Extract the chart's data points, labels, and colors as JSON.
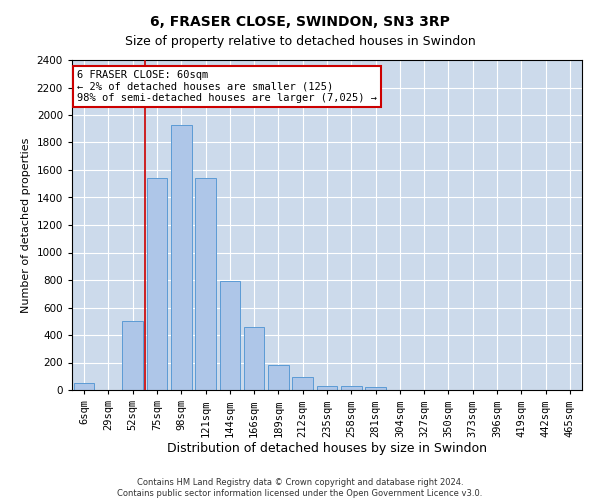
{
  "title": "6, FRASER CLOSE, SWINDON, SN3 3RP",
  "subtitle": "Size of property relative to detached houses in Swindon",
  "xlabel": "Distribution of detached houses by size in Swindon",
  "ylabel": "Number of detached properties",
  "categories": [
    "6sqm",
    "29sqm",
    "52sqm",
    "75sqm",
    "98sqm",
    "121sqm",
    "144sqm",
    "166sqm",
    "189sqm",
    "212sqm",
    "235sqm",
    "258sqm",
    "281sqm",
    "304sqm",
    "327sqm",
    "350sqm",
    "373sqm",
    "396sqm",
    "419sqm",
    "442sqm",
    "465sqm"
  ],
  "values": [
    50,
    0,
    500,
    1540,
    1930,
    1540,
    790,
    460,
    185,
    95,
    30,
    30,
    20,
    0,
    0,
    0,
    0,
    0,
    0,
    0,
    0
  ],
  "bar_color": "#aec6e8",
  "bar_edge_color": "#5b9bd5",
  "vline_x_index": 2.5,
  "marker_label_line1": "6 FRASER CLOSE: 60sqm",
  "marker_label_line2": "← 2% of detached houses are smaller (125)",
  "marker_label_line3": "98% of semi-detached houses are larger (7,025) →",
  "annotation_box_color": "#ffffff",
  "annotation_box_edge": "#cc0000",
  "vline_color": "#cc0000",
  "ylim": [
    0,
    2400
  ],
  "yticks": [
    0,
    200,
    400,
    600,
    800,
    1000,
    1200,
    1400,
    1600,
    1800,
    2000,
    2200,
    2400
  ],
  "bg_color": "#ffffff",
  "grid_color": "#ccdaeb",
  "footer_line1": "Contains HM Land Registry data © Crown copyright and database right 2024.",
  "footer_line2": "Contains public sector information licensed under the Open Government Licence v3.0.",
  "title_fontsize": 10,
  "subtitle_fontsize": 9,
  "xlabel_fontsize": 9,
  "ylabel_fontsize": 8,
  "tick_fontsize": 7.5,
  "annotation_fontsize": 7.5
}
